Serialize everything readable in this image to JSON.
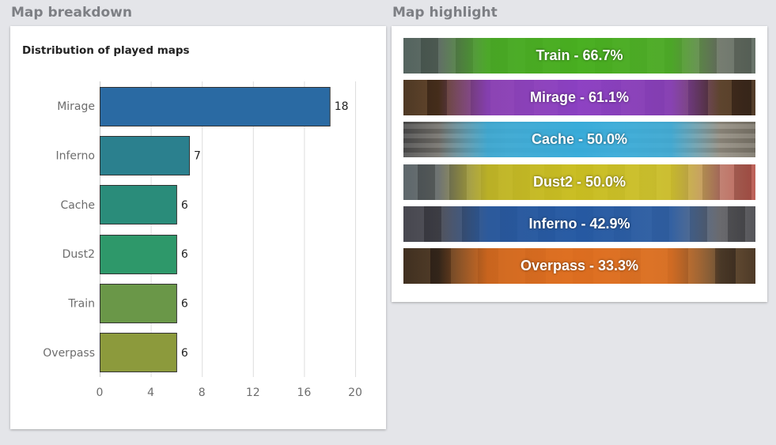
{
  "left_section_title": "Map breakdown",
  "right_section_title": "Map highlight",
  "chart_data": {
    "type": "bar",
    "orientation": "horizontal",
    "title": "Distribution of played maps",
    "categories": [
      "Mirage",
      "Inferno",
      "Cache",
      "Dust2",
      "Train",
      "Overpass"
    ],
    "values": [
      18,
      7,
      6,
      6,
      6,
      6
    ],
    "colors": [
      "#2a6aa3",
      "#2b808e",
      "#2a8c7a",
      "#2e986a",
      "#6a9748",
      "#8c9a3c"
    ],
    "xlim": [
      0,
      20
    ],
    "xticks": [
      0,
      4,
      8,
      12,
      16,
      20
    ],
    "grid": true
  },
  "highlights": [
    {
      "label": "Train - 66.7%",
      "color": "#43b318",
      "map": "train"
    },
    {
      "label": "Mirage - 61.1%",
      "color": "#8e3fd2",
      "map": "mirage"
    },
    {
      "label": "Cache - 50.0%",
      "color": "#29a8dc",
      "map": "cache"
    },
    {
      "label": "Dust2 - 50.0%",
      "color": "#cdc118",
      "map": "dust2"
    },
    {
      "label": "Inferno - 42.9%",
      "color": "#1f58a8",
      "map": "inferno"
    },
    {
      "label": "Overpass - 33.3%",
      "color": "#e8701d",
      "map": "overpass"
    }
  ]
}
